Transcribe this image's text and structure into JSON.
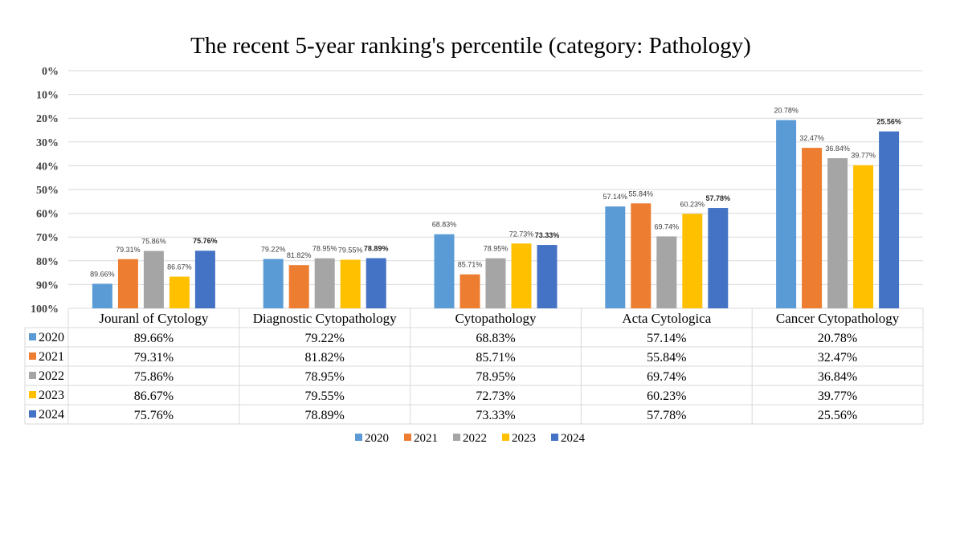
{
  "chart_data": {
    "type": "bar",
    "title": "The recent 5-year ranking's percentile (category: Pathology)",
    "categories": [
      "Jouranl of Cytology",
      "Diagnostic Cytopathology",
      "Cytopathology",
      "Acta Cytologica",
      "Cancer Cytopathology"
    ],
    "y_axis": {
      "reversed": true,
      "ylim": [
        0,
        100
      ],
      "ticks": [
        "0%",
        "10%",
        "20%",
        "30%",
        "40%",
        "50%",
        "60%",
        "70%",
        "80%",
        "90%",
        "100%"
      ]
    },
    "grid": true,
    "legend_position": "bottom",
    "data_table": true,
    "series": [
      {
        "name": "2020",
        "color": "#5B9BD5",
        "values": [
          89.66,
          79.22,
          68.83,
          57.14,
          20.78
        ],
        "labels": [
          "89.66%",
          "79.22%",
          "68.83%",
          "57.14%",
          "20.78%"
        ]
      },
      {
        "name": "2021",
        "color": "#ED7D31",
        "values": [
          79.31,
          81.82,
          85.71,
          55.84,
          32.47
        ],
        "labels": [
          "79.31%",
          "81.82%",
          "85.71%",
          "55.84%",
          "32.47%"
        ]
      },
      {
        "name": "2022",
        "color": "#A5A5A5",
        "values": [
          75.86,
          78.95,
          78.95,
          69.74,
          36.84
        ],
        "labels": [
          "75.86%",
          "78.95%",
          "78.95%",
          "69.74%",
          "36.84%"
        ]
      },
      {
        "name": "2023",
        "color": "#FFC000",
        "values": [
          86.67,
          79.55,
          72.73,
          60.23,
          39.77
        ],
        "labels": [
          "86.67%",
          "79.55%",
          "72.73%",
          "60.23%",
          "39.77%"
        ]
      },
      {
        "name": "2024",
        "color": "#4472C4",
        "values": [
          75.76,
          78.89,
          73.33,
          57.78,
          25.56
        ],
        "labels": [
          "75.76%",
          "78.89%",
          "73.33%",
          "57.78%",
          "25.56%"
        ],
        "bold_labels": true
      }
    ]
  }
}
